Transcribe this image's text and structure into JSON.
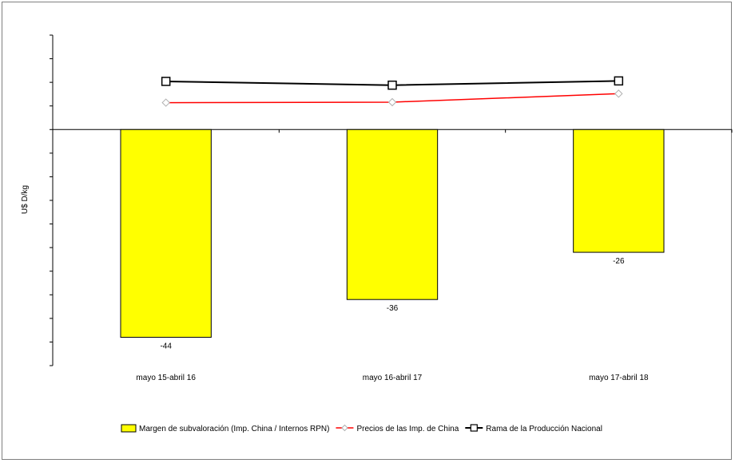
{
  "chart_data": {
    "type": "bar",
    "ylabel": "U$ D/kg",
    "categories": [
      "mayo 15-abril 16",
      "mayo 16-abril 17",
      "mayo 17-abril 18"
    ],
    "series": [
      {
        "name": "Margen de subvaloración (Imp. China / Internos RPN)",
        "kind": "bar",
        "color": "#ffff00",
        "values": [
          -44,
          -36,
          -26
        ],
        "labels": [
          "-44",
          "-36",
          "-26"
        ]
      },
      {
        "name": "Precios de las Imp. de China",
        "kind": "line",
        "color": "#ff0000",
        "marker": "diamond",
        "values": [
          5.7,
          5.8,
          7.6
        ]
      },
      {
        "name": "Rama de la Producción Nacional",
        "kind": "line",
        "color": "#000000",
        "marker": "square",
        "values": [
          10.2,
          9.4,
          10.3
        ]
      }
    ],
    "ylim": [
      -50,
      20
    ],
    "ytick_step": 5,
    "tick_labels_visible": false,
    "legend_position": "bottom",
    "grid": false
  }
}
